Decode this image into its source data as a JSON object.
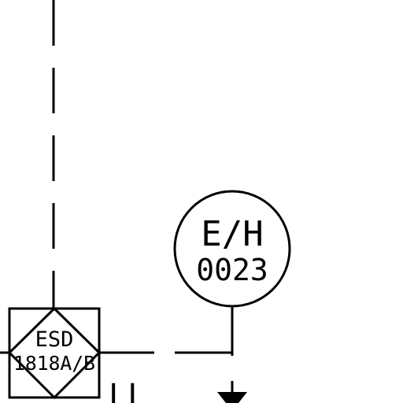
{
  "colors": {
    "line": "#000000",
    "background": "#ffffff"
  },
  "instrument_bubble": {
    "top_text": "E/H",
    "bottom_text": "0023"
  },
  "esd_block": {
    "top_text": "ESD",
    "bottom_text": "1818A/B"
  },
  "signal_label": "LL",
  "symbols": [
    "circle-instrument-bubble",
    "diamond-in-square-interlock",
    "valve-triangle"
  ]
}
